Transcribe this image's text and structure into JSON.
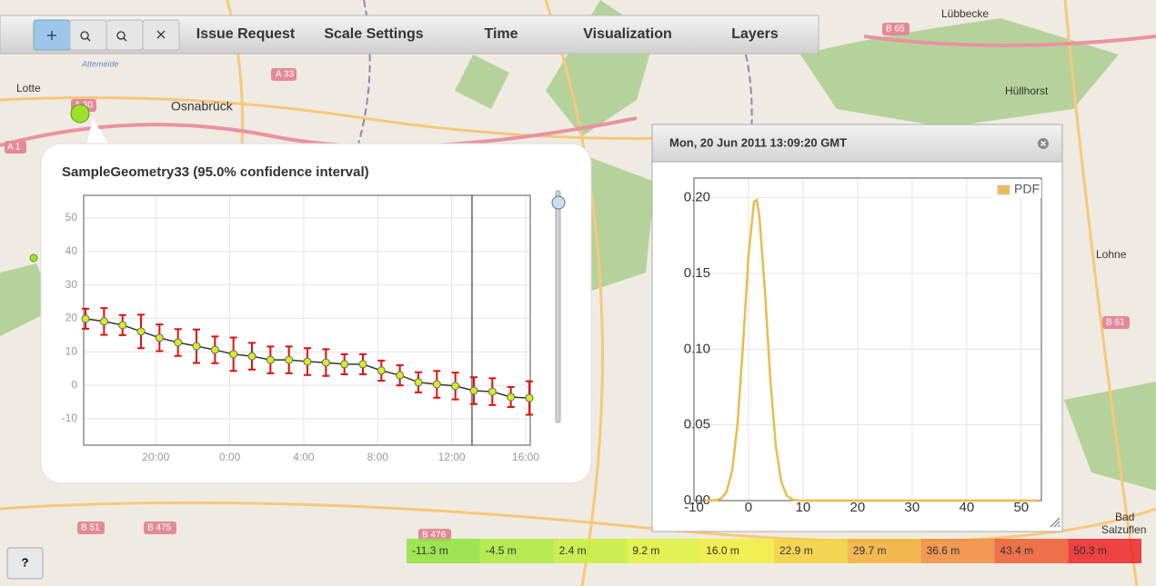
{
  "toolbar": {
    "items": [
      "Issue Request",
      "Scale Settings",
      "Time",
      "Visualization",
      "Layers"
    ]
  },
  "map": {
    "labels": [
      "Osnabrück",
      "Lotte",
      "Hüllhorst",
      "Lübbecke",
      "Lohne",
      "Bad",
      "Salzuflen",
      "A 33",
      "A 1",
      "A 30",
      "B 65",
      "B 61",
      "B 51",
      "B 475",
      "B 476",
      "Attemeide"
    ]
  },
  "help_button": "?",
  "chart_data": [
    {
      "type": "line",
      "title": "SampleGeometry33 (95.0% confidence interval)",
      "x": [
        16.2,
        17.2,
        18.2,
        19.2,
        20.2,
        21.2,
        22.2,
        23.2,
        24.2,
        25.2,
        26.2,
        27.2,
        28.2,
        29.2,
        30.2,
        31.2,
        32.2,
        33.2,
        34.2,
        35.2,
        36.2,
        37.2,
        38.2,
        39.2,
        40.2
      ],
      "series": [
        {
          "color": "#333333",
          "marker_color": "#d4ef1f",
          "error_color": "#e01010",
          "values": [
            19.9,
            19.1,
            18.0,
            16.1,
            14.2,
            12.8,
            11.7,
            10.6,
            9.3,
            8.7,
            7.6,
            7.6,
            7.1,
            6.8,
            6.3,
            6.3,
            4.4,
            3.0,
            0.9,
            0.3,
            -0.2,
            -1.6,
            -1.9,
            -3.5,
            -3.8
          ],
          "errors": [
            3,
            4,
            3,
            5,
            4,
            4,
            5,
            4,
            5,
            4,
            4,
            4,
            4,
            4,
            3,
            3,
            3,
            3,
            3,
            4,
            4,
            4,
            4,
            3,
            5
          ]
        }
      ],
      "xlim": [
        16.1,
        40.25
      ],
      "ylim": [
        -17.9,
        56.8
      ],
      "xticks": [
        {
          "value": 20,
          "label": "20:00"
        },
        {
          "value": 24,
          "label": "0:00"
        },
        {
          "value": 28,
          "label": "4:00"
        },
        {
          "value": 32,
          "label": "8:00"
        },
        {
          "value": 36,
          "label": "12:00"
        },
        {
          "value": 40,
          "label": "16:00"
        }
      ],
      "yticks": [
        50,
        40,
        30,
        20,
        10,
        0,
        -10
      ],
      "grid": true,
      "cursor_x": 37.1
    },
    {
      "type": "line",
      "title": "Mon, 20 Jun 2011 13:09:20 GMT",
      "x": [
        -8,
        -7,
        -6,
        -5,
        -4,
        -3,
        -2,
        -1,
        0,
        1,
        1.5,
        2,
        3,
        4,
        5,
        6,
        7,
        8,
        9,
        10,
        20,
        30,
        40,
        50,
        53
      ],
      "series": [
        {
          "name": "PDF",
          "color": "#e8bd4f",
          "values": [
            0,
            0,
            0.0003,
            0.0014,
            0.006,
            0.0198,
            0.0511,
            0.103,
            0.1615,
            0.1973,
            0.1985,
            0.1877,
            0.139,
            0.0802,
            0.0361,
            0.0126,
            0.0034,
            0.0007,
            0.0001,
            0,
            0,
            0,
            0,
            0,
            0
          ]
        }
      ],
      "xlim": [
        -10,
        53.7
      ],
      "ylim": [
        0,
        0.213
      ],
      "xticks": [
        -10,
        0,
        10,
        20,
        30,
        40,
        50
      ],
      "yticks": [
        {
          "value": 0,
          "label": "0.00"
        },
        {
          "value": 0.05,
          "label": "0.05"
        },
        {
          "value": 0.1,
          "label": "0.10"
        },
        {
          "value": 0.15,
          "label": "0.15"
        },
        {
          "value": 0.2,
          "label": "0.20"
        }
      ],
      "grid": true,
      "legend": "top-right"
    }
  ],
  "color_legend": {
    "items": [
      {
        "label": "-11.3 m",
        "color": "#8fe33a"
      },
      {
        "label": "-4.5 m",
        "color": "#aaea3a"
      },
      {
        "label": "2.4 m",
        "color": "#c6ef3a"
      },
      {
        "label": "9.2 m",
        "color": "#dff23a"
      },
      {
        "label": "16.0 m",
        "color": "#f0ee3a"
      },
      {
        "label": "22.9 m",
        "color": "#f2d23a"
      },
      {
        "label": "29.7 m",
        "color": "#f2b03a"
      },
      {
        "label": "36.6 m",
        "color": "#f08c3a"
      },
      {
        "label": "43.4 m",
        "color": "#ee5c30"
      },
      {
        "label": "50.3 m",
        "color": "#ec2424"
      }
    ]
  }
}
